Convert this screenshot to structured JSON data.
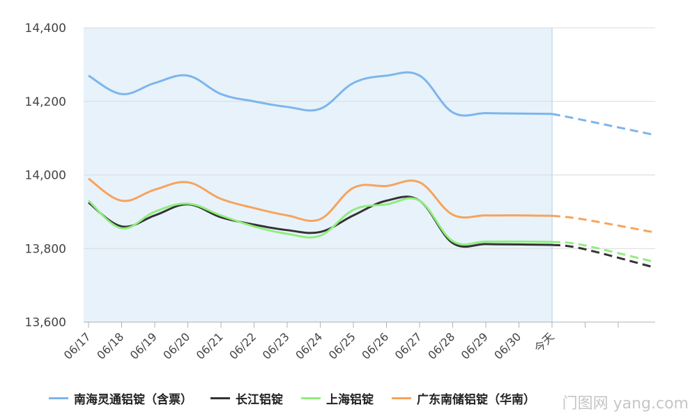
{
  "chart_data": {
    "type": "line",
    "title": "",
    "xlabel": "",
    "ylabel": "",
    "ylim": [
      13600,
      14400
    ],
    "yticks": [
      13600,
      13800,
      14000,
      14200,
      14400
    ],
    "ytick_labels": [
      "13,600",
      "13,800",
      "14,000",
      "14,200",
      "14,400"
    ],
    "categories": [
      "06/17",
      "06/18",
      "06/19",
      "06/20",
      "06/21",
      "06/22",
      "06/23",
      "06/24",
      "06/25",
      "06/26",
      "06/27",
      "06/28",
      "06/29",
      "06/30",
      "今天"
    ],
    "shaded_range": [
      "06/17",
      "今天"
    ],
    "grid": true,
    "legend_position": "bottom",
    "series": [
      {
        "name": "南海灵通铝锭（含票）",
        "color": "#7cb5ec",
        "values": [
          14270,
          14220,
          14250,
          14270,
          14220,
          14200,
          14185,
          14180,
          14250,
          14270,
          14270,
          14170,
          14168,
          14167,
          14166
        ],
        "forecast": [
          14166,
          14150,
          14110
        ]
      },
      {
        "name": "长江铝锭",
        "color": "#333333",
        "values": [
          13925,
          13860,
          13890,
          13920,
          13885,
          13865,
          13850,
          13845,
          13890,
          13930,
          13930,
          13815,
          13812,
          13811,
          13810
        ],
        "forecast": [
          13810,
          13800,
          13750
        ]
      },
      {
        "name": "上海铝锭",
        "color": "#90ed7d",
        "values": [
          13930,
          13855,
          13900,
          13922,
          13890,
          13860,
          13840,
          13835,
          13905,
          13920,
          13930,
          13820,
          13819,
          13819,
          13818
        ],
        "forecast": [
          13818,
          13810,
          13765
        ]
      },
      {
        "name": "广东南储铝锭（华南）",
        "color": "#f7a35c",
        "values": [
          13990,
          13930,
          13960,
          13980,
          13935,
          13910,
          13890,
          13880,
          13965,
          13970,
          13980,
          13892,
          13890,
          13890,
          13889
        ],
        "forecast": [
          13889,
          13880,
          13845
        ]
      }
    ]
  },
  "watermark": "门图网 yang.com"
}
